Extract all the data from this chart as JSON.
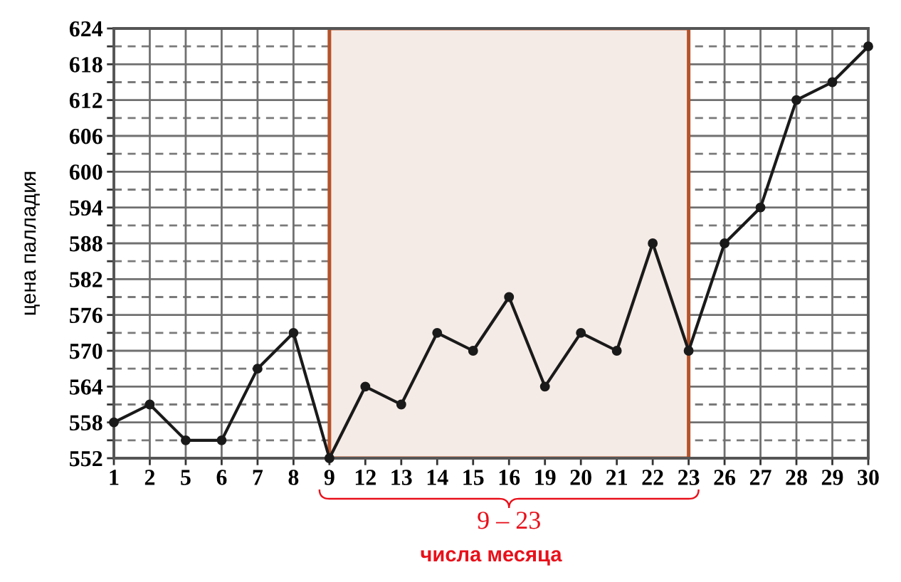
{
  "chart_data": {
    "type": "line",
    "xlabel": "числа месяца",
    "ylabel": "цена палладия",
    "categories": [
      "1",
      "2",
      "5",
      "6",
      "7",
      "8",
      "9",
      "12",
      "13",
      "14",
      "15",
      "16",
      "19",
      "20",
      "21",
      "22",
      "23",
      "26",
      "27",
      "28",
      "29",
      "30"
    ],
    "series": [
      {
        "color": "#1a1a1a",
        "values": [
          558,
          561,
          555,
          555,
          567,
          573,
          552,
          564,
          561,
          573,
          570,
          579,
          564,
          573,
          570,
          588,
          570,
          588,
          594,
          612,
          615,
          621
        ]
      }
    ],
    "ylim": [
      552,
      624
    ],
    "yticks": [
      552,
      {
        "value": 555,
        "label": null
      },
      558,
      {
        "value": 561,
        "label": null
      },
      564,
      {
        "value": 567,
        "label": null
      },
      570,
      {
        "value": 573,
        "label": null
      },
      576,
      {
        "value": 579,
        "label": null
      },
      582,
      {
        "value": 585,
        "label": null
      },
      588,
      {
        "value": 591,
        "label": null
      },
      594,
      {
        "value": 597,
        "label": null
      },
      600,
      {
        "value": 603,
        "label": null
      },
      606,
      {
        "value": 609,
        "label": null
      },
      612,
      {
        "value": 615,
        "label": null
      },
      618,
      {
        "value": 621,
        "label": null
      },
      624
    ],
    "grid": true,
    "marker": "circle",
    "line_style": "solid",
    "bands": [
      {
        "axis": "x",
        "from": "9",
        "to": "23",
        "label": "9 – 23",
        "color": "#f5ebe6"
      }
    ]
  }
}
